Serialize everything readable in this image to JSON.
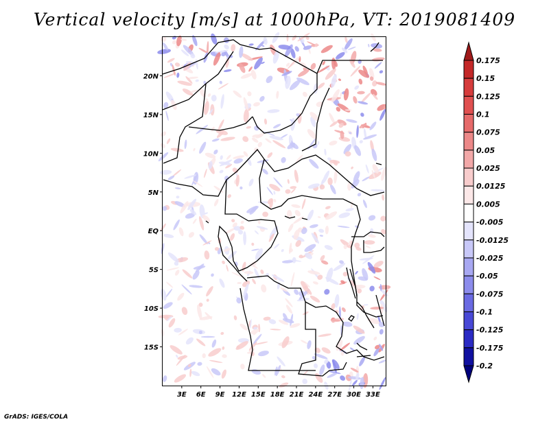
{
  "map": {
    "title": "Vertical velocity [m/s] at 1000hPa, VT: 2019081409",
    "credit": "GrADS: IGES/COLA",
    "lat_labels": [
      "20N",
      "15N",
      "10N",
      "5N",
      "EQ",
      "5S",
      "10S",
      "15S"
    ],
    "lon_labels": [
      "3E",
      "6E",
      "9E",
      "12E",
      "15E",
      "18E",
      "21E",
      "24E",
      "27E",
      "30E",
      "33E"
    ],
    "extent": {
      "lon_min": 0,
      "lon_max": 35,
      "lat_min": -20,
      "lat_max": 25
    }
  },
  "colorbar": {
    "levels": [
      "0.175",
      "0.15",
      "0.125",
      "0.1",
      "0.075",
      "0.05",
      "0.025",
      "0.0125",
      "0.005",
      "-0.005",
      "-0.0125",
      "-0.025",
      "-0.05",
      "-0.075",
      "-0.1",
      "-0.125",
      "-0.175",
      "-0.2"
    ],
    "colors": [
      "#a01a1a",
      "#c42828",
      "#d63c3c",
      "#e05050",
      "#e66a6a",
      "#ec8888",
      "#f2a8a8",
      "#f8cccc",
      "#fce8e8",
      "#ffffff",
      "#e4e4fc",
      "#c8c8f8",
      "#a8a8f2",
      "#8c8cec",
      "#6a6ae2",
      "#4848d6",
      "#2a2ac4",
      "#1010a0",
      "#00007c"
    ]
  }
}
